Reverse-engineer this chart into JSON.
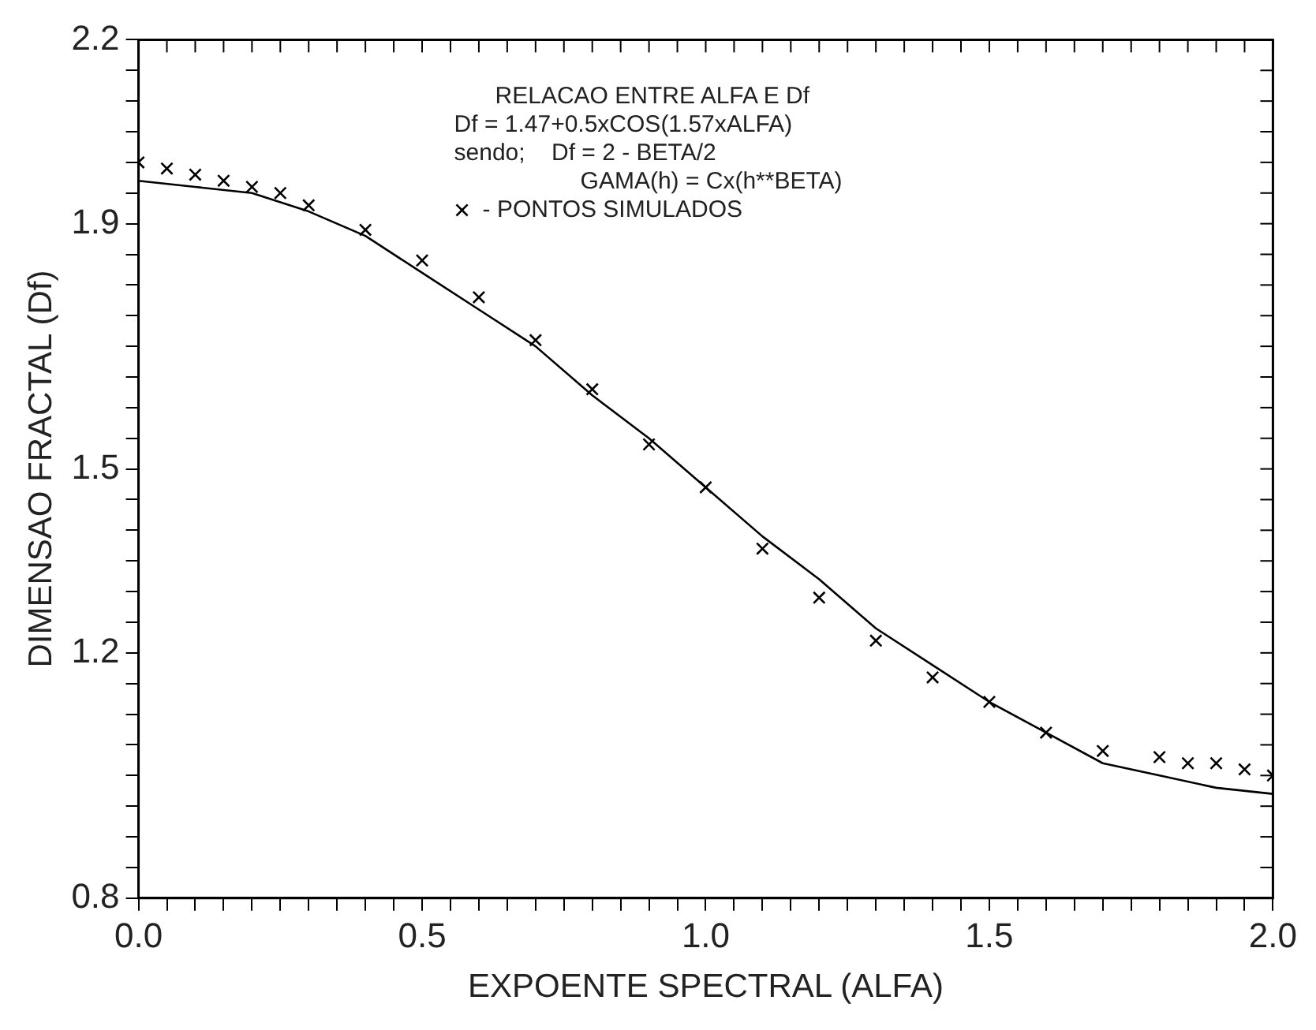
{
  "chart_data": {
    "type": "scatter",
    "title": "RELACAO ENTRE ALFA E Df",
    "xlabel": "EXPOENTE SPECTRAL (ALFA)",
    "ylabel": "DIMENSAO FRACTAL (Df)",
    "annotations": [
      "Df = 1.47+0.5xCOS(1.57xALFA)",
      "sendo;    Df = 2 - BETA/2",
      "GAMA(h) = Cx(h**BETA)"
    ],
    "series": [
      {
        "name": "- PONTOS SIMULADOS",
        "type": "scatter",
        "marker": "cross",
        "color": "#000000",
        "x": [
          0,
          0.05,
          0.1,
          0.15,
          0.2,
          0.25,
          0.3,
          0.4,
          0.5,
          0.6,
          0.7,
          0.8,
          0.9,
          1.0,
          1.1,
          1.2,
          1.3,
          1.4,
          1.5,
          1.6,
          1.7,
          1.8,
          1.85,
          1.9,
          1.95,
          2.0
        ],
        "values": [
          2.0,
          1.99,
          1.98,
          1.97,
          1.96,
          1.95,
          1.93,
          1.89,
          1.84,
          1.78,
          1.71,
          1.63,
          1.54,
          1.47,
          1.37,
          1.29,
          1.22,
          1.16,
          1.12,
          1.07,
          1.04,
          1.03,
          1.02,
          1.02,
          1.01,
          1.0
        ]
      },
      {
        "type": "line",
        "marker": "none",
        "color": "#000000",
        "x": [
          0,
          0.1,
          0.2,
          0.3,
          0.4,
          0.5,
          0.6,
          0.7,
          0.8,
          0.9,
          1.0,
          1.1,
          1.2,
          1.3,
          1.4,
          1.5,
          1.6,
          1.7,
          1.8,
          1.9,
          2.0
        ],
        "values": [
          1.97,
          1.96,
          1.95,
          1.92,
          1.88,
          1.82,
          1.76,
          1.7,
          1.62,
          1.55,
          1.47,
          1.39,
          1.32,
          1.24,
          1.18,
          1.12,
          1.07,
          1.02,
          1.0,
          0.98,
          0.97
        ]
      }
    ],
    "legend": "top",
    "grid": false,
    "xlim": [
      0,
      2.0
    ],
    "ylim": [
      0.8,
      2.2
    ],
    "xticks": [
      {
        "value": 0,
        "label": "0.0"
      },
      {
        "value": 0.05,
        "label": null
      },
      {
        "value": 0.1,
        "label": null
      },
      {
        "value": 0.15,
        "label": null
      },
      {
        "value": 0.2,
        "label": null
      },
      {
        "value": 0.25,
        "label": null
      },
      {
        "value": 0.3,
        "label": null
      },
      {
        "value": 0.35,
        "label": null
      },
      {
        "value": 0.4,
        "label": null
      },
      {
        "value": 0.45,
        "label": null
      },
      {
        "value": 0.5,
        "label": "0.5"
      },
      {
        "value": 0.55,
        "label": null
      },
      {
        "value": 0.6,
        "label": null
      },
      {
        "value": 0.65,
        "label": null
      },
      {
        "value": 0.7,
        "label": null
      },
      {
        "value": 0.75,
        "label": null
      },
      {
        "value": 0.8,
        "label": null
      },
      {
        "value": 0.85,
        "label": null
      },
      {
        "value": 0.9,
        "label": null
      },
      {
        "value": 0.95,
        "label": null
      },
      {
        "value": 1.0,
        "label": "1.0"
      },
      {
        "value": 1.05,
        "label": null
      },
      {
        "value": 1.1,
        "label": null
      },
      {
        "value": 1.15,
        "label": null
      },
      {
        "value": 1.2,
        "label": null
      },
      {
        "value": 1.25,
        "label": null
      },
      {
        "value": 1.3,
        "label": null
      },
      {
        "value": 1.35,
        "label": null
      },
      {
        "value": 1.4,
        "label": null
      },
      {
        "value": 1.45,
        "label": null
      },
      {
        "value": 1.5,
        "label": "1.5"
      },
      {
        "value": 1.55,
        "label": null
      },
      {
        "value": 1.6,
        "label": null
      },
      {
        "value": 1.65,
        "label": null
      },
      {
        "value": 1.7,
        "label": null
      },
      {
        "value": 1.75,
        "label": null
      },
      {
        "value": 1.8,
        "label": null
      },
      {
        "value": 1.85,
        "label": null
      },
      {
        "value": 1.9,
        "label": null
      },
      {
        "value": 1.95,
        "label": null
      },
      {
        "value": 2.0,
        "label": "2.0"
      }
    ],
    "yticks": [
      {
        "value": 0.8,
        "label": "0.8"
      },
      {
        "value": 0.85,
        "label": null
      },
      {
        "value": 0.9,
        "label": null
      },
      {
        "value": 0.95,
        "label": null
      },
      {
        "value": 1.0,
        "label": null
      },
      {
        "value": 1.05,
        "label": null
      },
      {
        "value": 1.1,
        "label": null
      },
      {
        "value": 1.15,
        "label": null
      },
      {
        "value": 1.2,
        "label": "1.2"
      },
      {
        "value": 1.25,
        "label": null
      },
      {
        "value": 1.3,
        "label": null
      },
      {
        "value": 1.35,
        "label": null
      },
      {
        "value": 1.4,
        "label": null
      },
      {
        "value": 1.45,
        "label": null
      },
      {
        "value": 1.5,
        "label": "1.5"
      },
      {
        "value": 1.55,
        "label": null
      },
      {
        "value": 1.6,
        "label": null
      },
      {
        "value": 1.65,
        "label": null
      },
      {
        "value": 1.7,
        "label": null
      },
      {
        "value": 1.75,
        "label": null
      },
      {
        "value": 1.8,
        "label": null
      },
      {
        "value": 1.85,
        "label": null
      },
      {
        "value": 1.9,
        "label": "1.9"
      },
      {
        "value": 1.95,
        "label": null
      },
      {
        "value": 2.0,
        "label": null
      },
      {
        "value": 2.05,
        "label": null
      },
      {
        "value": 2.1,
        "label": null
      },
      {
        "value": 2.15,
        "label": null
      },
      {
        "value": 2.2,
        "label": "2.2"
      }
    ]
  }
}
